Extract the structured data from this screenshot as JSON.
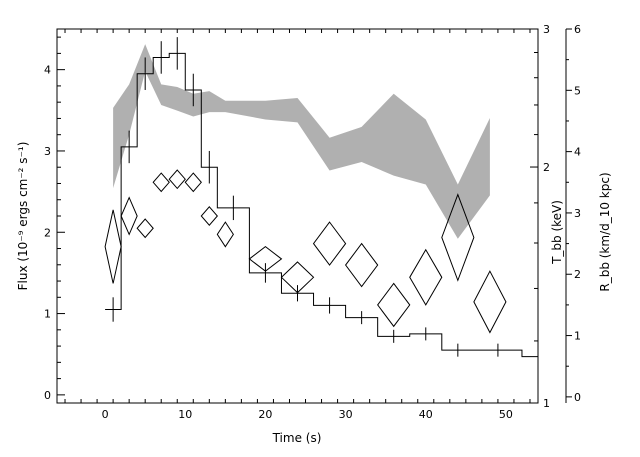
{
  "chart_data": {
    "type": "line",
    "xlabel": "Time (s)",
    "ylabel_left": "Flux (10⁻⁹ ergs cm⁻² s⁻¹)",
    "ylabel_right_inner": "T_bb (keV)",
    "ylabel_right_outer": "R_bb (km/d_10 kpc)",
    "xlim": [
      -6,
      54
    ],
    "ylim_left": [
      -0.1,
      4.5
    ],
    "ylim_kT": [
      1,
      3
    ],
    "ylim_R": [
      -0.1,
      6.0
    ],
    "x_ticks": [
      0,
      10,
      20,
      30,
      40,
      50
    ],
    "y_ticks_left": [
      0,
      1,
      2,
      3,
      4
    ],
    "y_ticks_kT": [
      1,
      2,
      3
    ],
    "y_ticks_R": [
      0,
      1,
      2,
      3,
      4,
      5,
      6
    ],
    "tick_labels": {
      "x": [
        "0",
        "10",
        "20",
        "30",
        "40",
        "50"
      ],
      "left": [
        "0",
        "1",
        "2",
        "3",
        "4"
      ],
      "kT": [
        "1",
        "2",
        "3"
      ],
      "R": [
        "0",
        "1",
        "2",
        "3",
        "4",
        "5",
        "6"
      ]
    },
    "series": [
      {
        "kind": "flux_histogram_with_errors",
        "bins": [
          {
            "x0": 0,
            "x1": 2,
            "y": 1.05,
            "err": 0.15
          },
          {
            "x0": 2,
            "x1": 4,
            "y": 3.05,
            "err": 0.2
          },
          {
            "x0": 4,
            "x1": 6,
            "y": 3.95,
            "err": 0.2
          },
          {
            "x0": 6,
            "x1": 8,
            "y": 4.15,
            "err": 0.2
          },
          {
            "x0": 8,
            "x1": 10,
            "y": 4.2,
            "err": 0.2
          },
          {
            "x0": 10,
            "x1": 12,
            "y": 3.75,
            "err": 0.2
          },
          {
            "x0": 12,
            "x1": 14,
            "y": 2.8,
            "err": 0.2
          },
          {
            "x0": 14,
            "x1": 18,
            "y": 2.3,
            "err": 0.15
          },
          {
            "x0": 18,
            "x1": 22,
            "y": 1.5,
            "err": 0.12
          },
          {
            "x0": 22,
            "x1": 26,
            "y": 1.25,
            "err": 0.1
          },
          {
            "x0": 26,
            "x1": 30,
            "y": 1.1,
            "err": 0.1
          },
          {
            "x0": 30,
            "x1": 34,
            "y": 0.95,
            "err": 0.08
          },
          {
            "x0": 34,
            "x1": 38,
            "y": 0.72,
            "err": 0.08
          },
          {
            "x0": 38,
            "x1": 42,
            "y": 0.75,
            "err": 0.08
          },
          {
            "x0": 42,
            "x1": 46,
            "y": 0.55,
            "err": 0.08
          },
          {
            "x0": 46,
            "x1": 52,
            "y": 0.55,
            "err": 0.08
          },
          {
            "x0": 52,
            "x1": 54,
            "y": 0.47,
            "err": 0.0
          }
        ]
      },
      {
        "kind": "kT_band",
        "x": [
          1,
          3,
          5,
          7,
          9,
          11,
          13,
          15,
          20,
          24,
          28,
          32,
          36,
          40,
          44,
          48
        ],
        "upper": [
          2.38,
          2.55,
          2.87,
          2.55,
          2.53,
          2.48,
          2.5,
          2.43,
          2.43,
          2.45,
          2.18,
          2.25,
          2.48,
          2.3,
          1.9,
          2.31
        ],
        "lower": [
          1.88,
          2.2,
          2.65,
          2.4,
          2.36,
          2.32,
          2.35,
          2.35,
          2.3,
          2.28,
          1.98,
          2.03,
          1.95,
          1.9,
          1.62,
          1.84
        ]
      },
      {
        "kind": "radius_diamonds",
        "points": [
          {
            "x": 1,
            "y": 2.45,
            "dx": 1,
            "dy": 0.6
          },
          {
            "x": 3,
            "y": 2.95,
            "dx": 1,
            "dy": 0.3
          },
          {
            "x": 5,
            "y": 2.75,
            "dx": 1,
            "dy": 0.15
          },
          {
            "x": 7,
            "y": 3.5,
            "dx": 1,
            "dy": 0.15
          },
          {
            "x": 9,
            "y": 3.55,
            "dx": 1,
            "dy": 0.15
          },
          {
            "x": 11,
            "y": 3.5,
            "dx": 1,
            "dy": 0.15
          },
          {
            "x": 13,
            "y": 2.95,
            "dx": 1,
            "dy": 0.15
          },
          {
            "x": 15,
            "y": 2.65,
            "dx": 1,
            "dy": 0.2
          },
          {
            "x": 20,
            "y": 2.25,
            "dx": 2,
            "dy": 0.2
          },
          {
            "x": 24,
            "y": 1.95,
            "dx": 2,
            "dy": 0.25
          },
          {
            "x": 28,
            "y": 2.5,
            "dx": 2,
            "dy": 0.35
          },
          {
            "x": 32,
            "y": 2.15,
            "dx": 2,
            "dy": 0.35
          },
          {
            "x": 36,
            "y": 1.5,
            "dx": 2,
            "dy": 0.35
          },
          {
            "x": 40,
            "y": 1.95,
            "dx": 2,
            "dy": 0.45
          },
          {
            "x": 44,
            "y": 2.6,
            "dx": 2,
            "dy": 0.7
          },
          {
            "x": 48,
            "y": 1.55,
            "dx": 2,
            "dy": 0.5
          }
        ]
      }
    ]
  }
}
